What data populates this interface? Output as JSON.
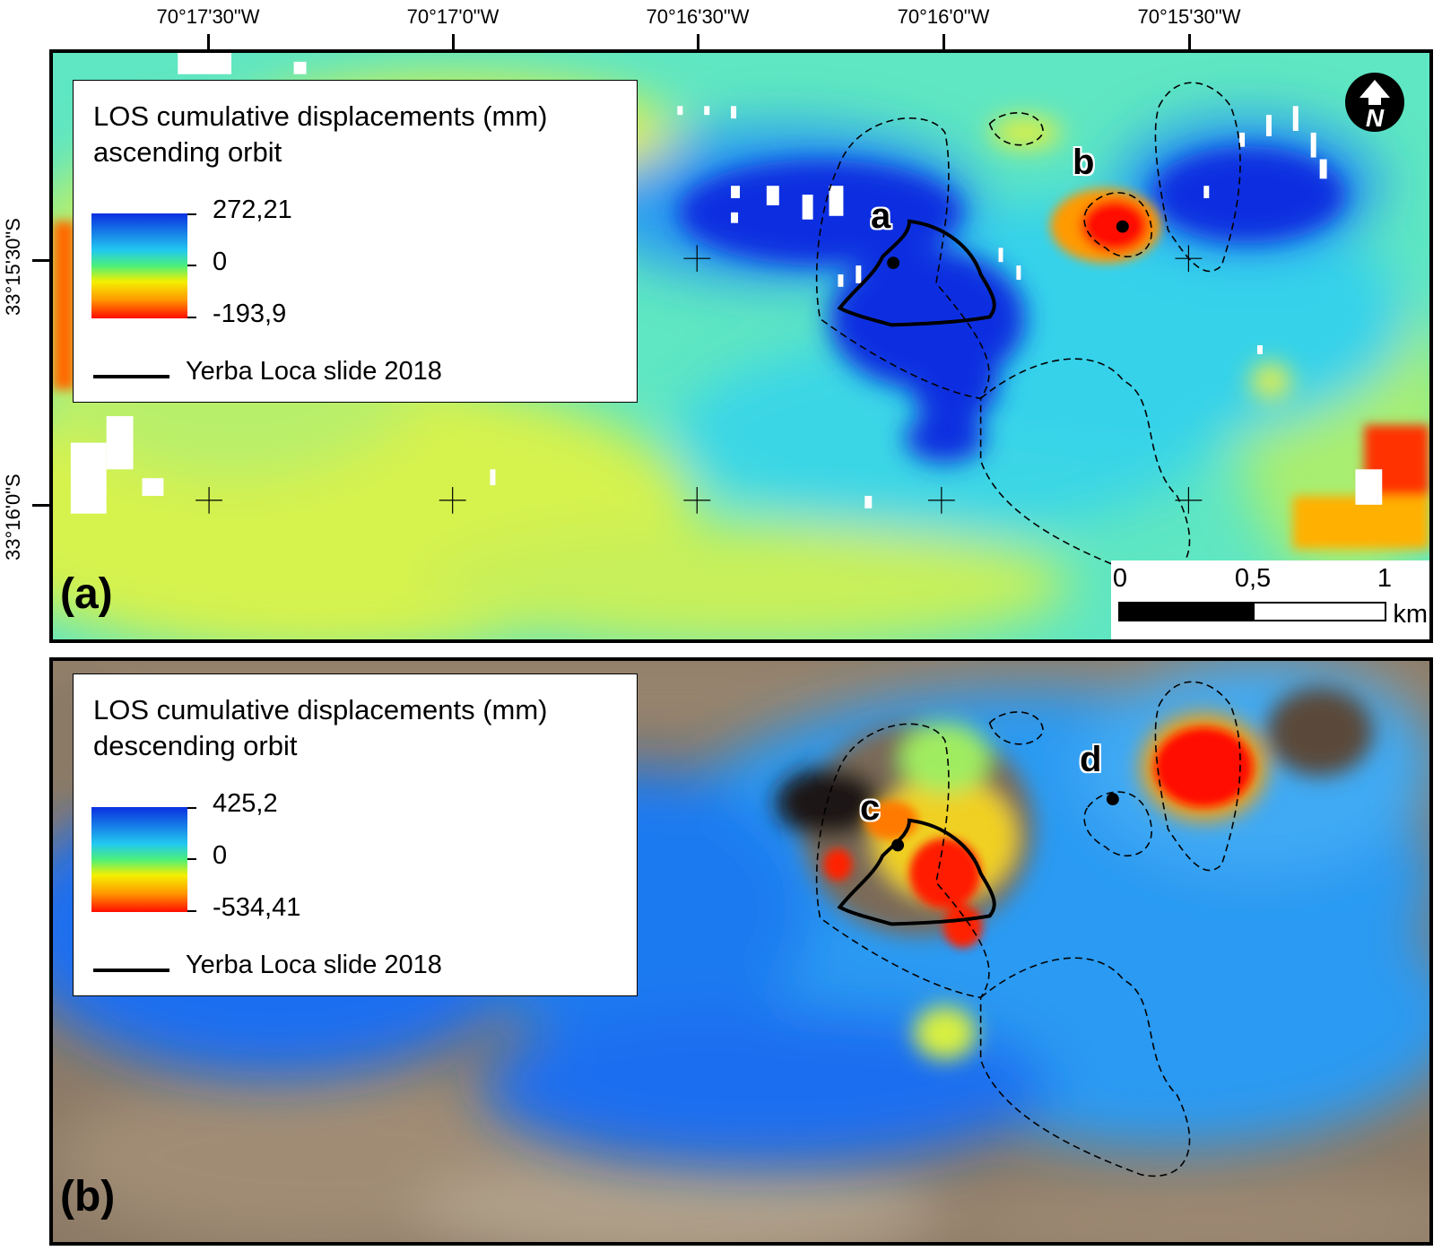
{
  "longitude_labels": [
    "70°17'30\"W",
    "70°17'0\"W",
    "70°16'30\"W",
    "70°16'0\"W",
    "70°15'30\"W"
  ],
  "latitude_labels": [
    "33°15'30\"S",
    "33°16'0\"S"
  ],
  "panel_a": {
    "panel_label": "(a)",
    "legend_title_line1": "LOS cumulative displacements (mm)",
    "legend_title_line2": "ascending orbit",
    "legend_max": "272,21",
    "legend_zero": "0",
    "legend_min": "-193,9",
    "line_label": "Yerba Loca slide 2018",
    "site_labels": [
      "a",
      "b"
    ],
    "scale_labels": [
      "0",
      "0,5",
      "1"
    ],
    "scale_unit": "km",
    "north_arrow_icon": "north-arrow-icon"
  },
  "panel_b": {
    "panel_label": "(b)",
    "legend_title_line1": "LOS cumulative displacements (mm)",
    "legend_title_line2": "descending orbit",
    "legend_max": "425,2",
    "legend_zero": "0",
    "legend_min": "-534,41",
    "line_label": "Yerba Loca slide 2018",
    "site_labels": [
      "c",
      "d"
    ]
  },
  "colors": {
    "ramp_blue": "#0a2fe0",
    "ramp_cyan": "#22c8f0",
    "ramp_green": "#4cf07a",
    "ramp_yellow": "#f4f000",
    "ramp_orange": "#ff9a00",
    "ramp_red": "#ff0c00",
    "terrain": "#8c7a66"
  }
}
